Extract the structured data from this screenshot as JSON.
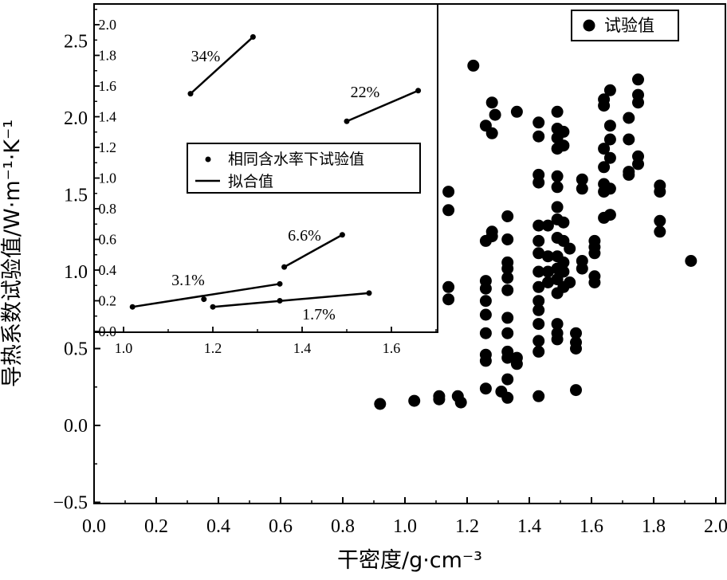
{
  "chart_data": [
    {
      "type": "scatter",
      "xlabel": "干密度/g·cm⁻³",
      "ylabel": "导热系数试验值/W·m⁻¹·K⁻¹",
      "xlim": [
        0.0,
        2.0
      ],
      "ylim": [
        -0.5,
        2.7
      ],
      "x_ticks": [
        "0.0",
        "0.2",
        "0.4",
        "0.6",
        "0.8",
        "1.0",
        "1.2",
        "1.4",
        "1.6",
        "1.8",
        "2.0"
      ],
      "y_ticks": [
        "−0.5",
        "0.0",
        "0.5",
        "1.0",
        "1.5",
        "2.0",
        "2.5"
      ],
      "legend": {
        "position": "top-right",
        "entries": [
          "试验值"
        ]
      },
      "grid": false,
      "series": [
        {
          "name": "试验值",
          "marker": "filled-circle",
          "color": "#000000",
          "points": [
            [
              0.92,
              0.14
            ],
            [
              1.03,
              0.16
            ],
            [
              1.11,
              0.19
            ],
            [
              1.11,
              0.17
            ],
            [
              1.17,
              0.19
            ],
            [
              1.18,
              0.15
            ],
            [
              1.14,
              1.52
            ],
            [
              1.14,
              1.4
            ],
            [
              1.14,
              0.9
            ],
            [
              1.14,
              0.82
            ],
            [
              1.22,
              2.34
            ],
            [
              1.26,
              0.24
            ],
            [
              1.26,
              0.46
            ],
            [
              1.26,
              0.42
            ],
            [
              1.26,
              0.6
            ],
            [
              1.26,
              0.72
            ],
            [
              1.26,
              0.81
            ],
            [
              1.26,
              0.89
            ],
            [
              1.26,
              0.94
            ],
            [
              1.26,
              1.2
            ],
            [
              1.26,
              1.95
            ],
            [
              1.28,
              1.26
            ],
            [
              1.28,
              1.23
            ],
            [
              1.28,
              1.9
            ],
            [
              1.28,
              2.1
            ],
            [
              1.29,
              2.02
            ],
            [
              1.31,
              0.22
            ],
            [
              1.33,
              0.18
            ],
            [
              1.33,
              0.3
            ],
            [
              1.33,
              0.44
            ],
            [
              1.33,
              0.48
            ],
            [
              1.33,
              0.6
            ],
            [
              1.33,
              0.7
            ],
            [
              1.33,
              0.88
            ],
            [
              1.33,
              0.96
            ],
            [
              1.33,
              1.02
            ],
            [
              1.33,
              1.06
            ],
            [
              1.33,
              1.21
            ],
            [
              1.33,
              1.36
            ],
            [
              1.36,
              2.04
            ],
            [
              1.36,
              0.4
            ],
            [
              1.36,
              0.44
            ],
            [
              1.43,
              0.19
            ],
            [
              1.43,
              0.48
            ],
            [
              1.43,
              0.55
            ],
            [
              1.43,
              0.66
            ],
            [
              1.43,
              0.75
            ],
            [
              1.43,
              0.81
            ],
            [
              1.43,
              0.9
            ],
            [
              1.43,
              1.0
            ],
            [
              1.43,
              1.12
            ],
            [
              1.43,
              1.2
            ],
            [
              1.43,
              1.3
            ],
            [
              1.43,
              1.58
            ],
            [
              1.43,
              1.63
            ],
            [
              1.43,
              1.88
            ],
            [
              1.43,
              1.97
            ],
            [
              1.46,
              0.93
            ],
            [
              1.46,
              1.0
            ],
            [
              1.46,
              1.1
            ],
            [
              1.46,
              1.3
            ],
            [
              1.49,
              0.56
            ],
            [
              1.49,
              0.6
            ],
            [
              1.49,
              0.66
            ],
            [
              1.49,
              0.86
            ],
            [
              1.49,
              0.95
            ],
            [
              1.49,
              1.02
            ],
            [
              1.49,
              1.1
            ],
            [
              1.49,
              1.22
            ],
            [
              1.49,
              1.34
            ],
            [
              1.49,
              1.42
            ],
            [
              1.49,
              1.55
            ],
            [
              1.49,
              1.62
            ],
            [
              1.49,
              1.8
            ],
            [
              1.49,
              1.87
            ],
            [
              1.49,
              1.93
            ],
            [
              1.49,
              2.04
            ],
            [
              1.51,
              0.9
            ],
            [
              1.51,
              1.0
            ],
            [
              1.51,
              1.06
            ],
            [
              1.51,
              1.2
            ],
            [
              1.51,
              1.32
            ],
            [
              1.51,
              1.82
            ],
            [
              1.51,
              1.91
            ],
            [
              1.53,
              0.93
            ],
            [
              1.53,
              1.15
            ],
            [
              1.55,
              0.23
            ],
            [
              1.55,
              0.5
            ],
            [
              1.55,
              0.54
            ],
            [
              1.55,
              0.6
            ],
            [
              1.57,
              1.02
            ],
            [
              1.57,
              1.07
            ],
            [
              1.57,
              1.54
            ],
            [
              1.57,
              1.6
            ],
            [
              1.61,
              0.93
            ],
            [
              1.61,
              0.97
            ],
            [
              1.61,
              1.12
            ],
            [
              1.61,
              1.16
            ],
            [
              1.61,
              1.2
            ],
            [
              1.64,
              1.35
            ],
            [
              1.64,
              1.52
            ],
            [
              1.64,
              1.57
            ],
            [
              1.64,
              1.68
            ],
            [
              1.64,
              1.8
            ],
            [
              1.64,
              2.08
            ],
            [
              1.64,
              2.12
            ],
            [
              1.66,
              1.37
            ],
            [
              1.66,
              1.54
            ],
            [
              1.66,
              1.74
            ],
            [
              1.66,
              1.86
            ],
            [
              1.66,
              1.95
            ],
            [
              1.66,
              2.18
            ],
            [
              1.72,
              1.63
            ],
            [
              1.72,
              1.65
            ],
            [
              1.72,
              1.86
            ],
            [
              1.72,
              2.0
            ],
            [
              1.75,
              1.7
            ],
            [
              1.75,
              1.75
            ],
            [
              1.75,
              2.1
            ],
            [
              1.75,
              2.15
            ],
            [
              1.75,
              2.25
            ],
            [
              1.82,
              1.26
            ],
            [
              1.82,
              1.33
            ],
            [
              1.82,
              1.52
            ],
            [
              1.82,
              1.56
            ],
            [
              1.92,
              1.07
            ]
          ]
        }
      ]
    },
    {
      "type": "line",
      "role": "inset",
      "xlim": [
        1.0,
        1.7
      ],
      "ylim": [
        0.0,
        2.0
      ],
      "x_ticks": [
        "1.0",
        "1.2",
        "1.4",
        "1.6"
      ],
      "y_ticks": [
        "0.0",
        "0.2",
        "0.4",
        "0.6",
        "0.8",
        "1.0",
        "1.2",
        "1.4",
        "1.6",
        "1.8",
        "2.0"
      ],
      "legend": {
        "position": "center",
        "entries": [
          "相同含水率下试验值",
          "拟合值"
        ]
      },
      "series": [
        {
          "label": "34%",
          "points": [
            [
              1.15,
              1.55
            ],
            [
              1.29,
              1.92
            ]
          ]
        },
        {
          "label": "22%",
          "points": [
            [
              1.5,
              1.37
            ],
            [
              1.66,
              1.57
            ]
          ]
        },
        {
          "label": "6.6%",
          "points": [
            [
              1.36,
              0.42
            ],
            [
              1.49,
              0.63
            ]
          ]
        },
        {
          "label": "3.1%",
          "points": [
            [
              1.02,
              0.16
            ],
            [
              1.18,
              0.21
            ],
            [
              1.35,
              0.31
            ]
          ]
        },
        {
          "label": "1.7%",
          "points": [
            [
              1.2,
              0.16
            ],
            [
              1.35,
              0.2
            ],
            [
              1.55,
              0.25
            ]
          ]
        }
      ]
    }
  ]
}
